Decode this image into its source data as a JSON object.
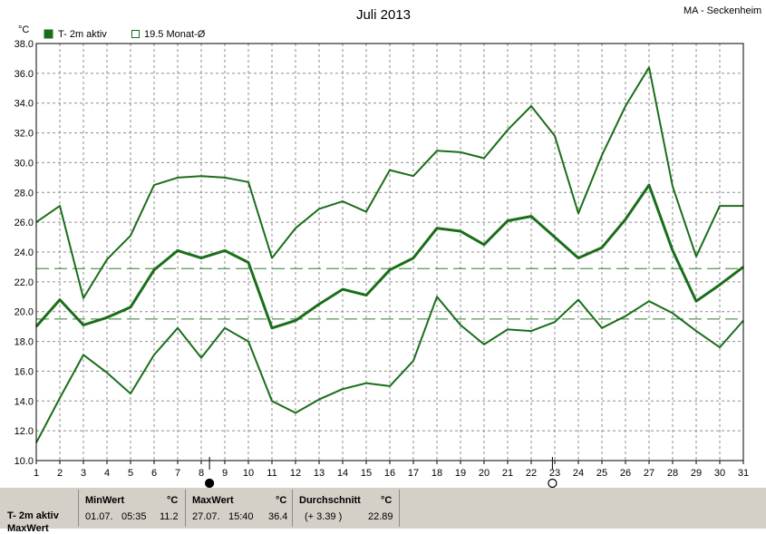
{
  "window": {
    "title": "Juli 2013",
    "station": "MA - Seckenheim"
  },
  "legend": [
    {
      "label": "T- 2m aktiv",
      "filled": true,
      "color": "#1a6e1a"
    },
    {
      "label": "19.5 Monat-Ø",
      "filled": false,
      "color": "#1a6e1a"
    }
  ],
  "chart_data": {
    "type": "line",
    "title": "Juli 2013",
    "ylabel": "°C",
    "xlabel": "",
    "x": [
      1,
      2,
      3,
      4,
      5,
      6,
      7,
      8,
      9,
      10,
      11,
      12,
      13,
      14,
      15,
      16,
      17,
      18,
      19,
      20,
      21,
      22,
      23,
      24,
      25,
      26,
      27,
      28,
      29,
      30,
      31
    ],
    "x_ticks": [
      "1",
      "2",
      "3",
      "4",
      "5",
      "6",
      "7",
      "8",
      "9",
      "10",
      "11",
      "12",
      "13",
      "14",
      "15",
      "16",
      "17",
      "18",
      "19",
      "20",
      "21",
      "22",
      "23",
      "24",
      "25",
      "26",
      "27",
      "28",
      "29",
      "30",
      "31"
    ],
    "y_ticks": [
      "10.0",
      "12.0",
      "14.0",
      "16.0",
      "18.0",
      "20.0",
      "22.0",
      "24.0",
      "26.0",
      "28.0",
      "30.0",
      "32.0",
      "34.0",
      "36.0",
      "38.0"
    ],
    "ylim": [
      10,
      38
    ],
    "grid": true,
    "series": [
      {
        "role": "max",
        "values": [
          26.0,
          27.1,
          20.9,
          23.5,
          25.1,
          28.5,
          29.0,
          29.1,
          29.0,
          28.7,
          23.6,
          25.6,
          26.9,
          27.4,
          26.7,
          29.5,
          29.1,
          30.8,
          30.7,
          30.3,
          32.2,
          33.8,
          31.8,
          26.6,
          30.5,
          33.8,
          36.4,
          28.4,
          23.7,
          27.1,
          27.1
        ]
      },
      {
        "role": "mean",
        "values": [
          19.0,
          20.8,
          19.1,
          19.6,
          20.3,
          22.8,
          24.1,
          23.6,
          24.1,
          23.3,
          18.9,
          19.4,
          20.5,
          21.5,
          21.1,
          22.8,
          23.6,
          25.6,
          25.4,
          24.5,
          26.1,
          26.4,
          25.0,
          23.6,
          24.3,
          26.2,
          28.5,
          24.1,
          20.7,
          21.8,
          23.0
        ]
      },
      {
        "role": "min",
        "values": [
          11.2,
          14.2,
          17.1,
          15.9,
          14.5,
          17.1,
          18.9,
          16.9,
          18.9,
          18.0,
          14.0,
          13.2,
          14.1,
          14.8,
          15.2,
          15.0,
          16.7,
          21.0,
          19.1,
          17.8,
          18.8,
          18.7,
          19.3,
          20.8,
          18.9,
          19.7,
          20.7,
          19.9,
          18.7,
          17.6,
          19.4
        ]
      }
    ],
    "reference_lines": [
      {
        "value": 22.89
      },
      {
        "value": 19.5
      }
    ],
    "moon_phases": [
      {
        "day": 8.35,
        "phase": "full"
      },
      {
        "day": 22.9,
        "phase": "new"
      }
    ]
  },
  "footer": {
    "label_line1": "T- 2m aktiv",
    "label_line2": "MaxWert",
    "min": {
      "title": "MinWert",
      "unit": "°C",
      "date": "01.07.",
      "time": "05:35",
      "value": "11.2"
    },
    "max": {
      "title": "MaxWert",
      "unit": "°C",
      "date": "27.07.",
      "time": "15:40",
      "value": "36.4"
    },
    "avg": {
      "title": "Durchschnitt",
      "unit": "°C",
      "diff": "(+ 3.39 )",
      "value": "22.89"
    }
  },
  "colors": {
    "line": "#1a6e1a",
    "grid": "#8c8c8c",
    "reference": "#2e7d2e",
    "footer": "#d4d0c8"
  }
}
